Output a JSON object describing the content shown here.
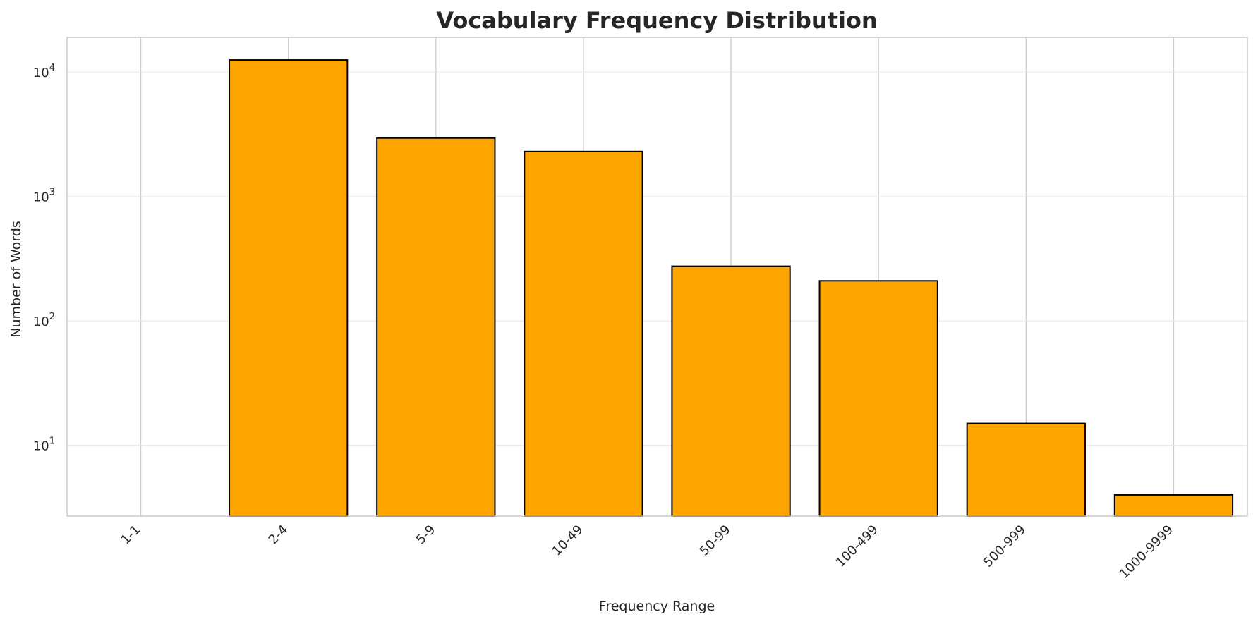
{
  "chart_data": {
    "type": "bar",
    "title": "Vocabulary Frequency Distribution",
    "xlabel": "Frequency Range",
    "ylabel": "Number of Words",
    "y_scale": "log",
    "ylim": [
      2.7,
      19000
    ],
    "grid": true,
    "legend": "none",
    "bar_color": "#FFA500",
    "bar_edge_color": "#000000",
    "categories": [
      "1-1",
      "2-4",
      "5-9",
      "10-49",
      "50-99",
      "100-499",
      "500-999",
      "1000-9999"
    ],
    "values": [
      0,
      12500,
      2950,
      2300,
      275,
      210,
      15,
      4
    ],
    "y_ticks": [
      {
        "value": 10,
        "base": "10",
        "exp": "1"
      },
      {
        "value": 100,
        "base": "10",
        "exp": "2"
      },
      {
        "value": 1000,
        "base": "10",
        "exp": "3"
      },
      {
        "value": 10000,
        "base": "10",
        "exp": "4"
      }
    ]
  }
}
